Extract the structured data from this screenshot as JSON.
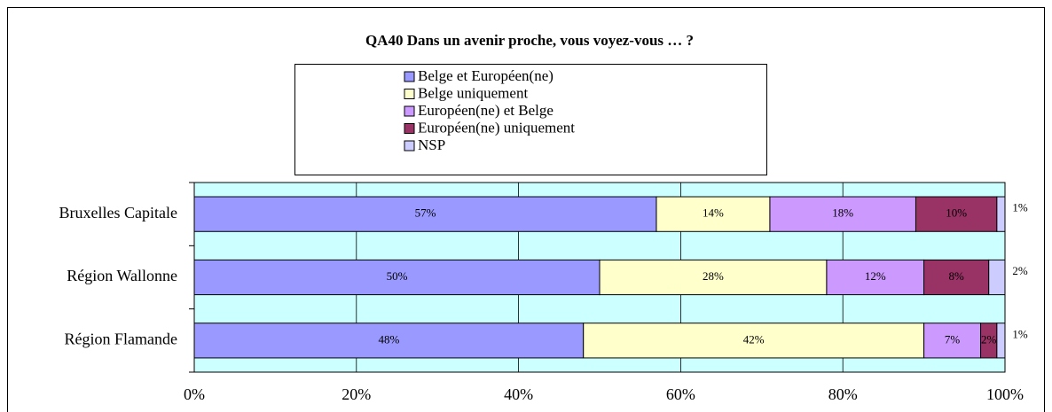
{
  "chart_data": {
    "type": "stacked_barh",
    "title": "QA40 Dans un avenir proche, vous voyez-vous … ?",
    "categories": [
      "Bruxelles Capitale",
      "Région Wallonne",
      "Région Flamande"
    ],
    "series": [
      {
        "name": "Belge et Européen(ne)",
        "color": "#9999ff",
        "values": [
          57,
          50,
          48
        ],
        "value_labels": [
          "57%",
          "50%",
          "48%"
        ]
      },
      {
        "name": "Belge uniquement",
        "color": "#ffffcc",
        "values": [
          14,
          28,
          42
        ],
        "value_labels": [
          "14%",
          "28%",
          "42%"
        ]
      },
      {
        "name": "Européen(ne) et Belge",
        "color": "#cc99ff",
        "values": [
          18,
          12,
          7
        ],
        "value_labels": [
          "18%",
          "12%",
          "7%"
        ]
      },
      {
        "name": "Européen(ne) uniquement",
        "color": "#993366",
        "values": [
          10,
          8,
          2
        ],
        "value_labels": [
          "10%",
          "8%",
          "2%"
        ]
      },
      {
        "name": "NSP",
        "color": "#ccccff",
        "values": [
          1,
          2,
          1
        ],
        "value_labels": [
          "1%",
          "2%",
          "1%"
        ]
      }
    ],
    "xlim": [
      0,
      100
    ],
    "xticks": [
      {
        "value": 0,
        "label": "0%"
      },
      {
        "value": 20,
        "label": "20%"
      },
      {
        "value": 40,
        "label": "40%"
      },
      {
        "value": 60,
        "label": "60%"
      },
      {
        "value": 80,
        "label": "80%"
      },
      {
        "value": 100,
        "label": "100%"
      }
    ],
    "grid": true,
    "legend": "top"
  }
}
